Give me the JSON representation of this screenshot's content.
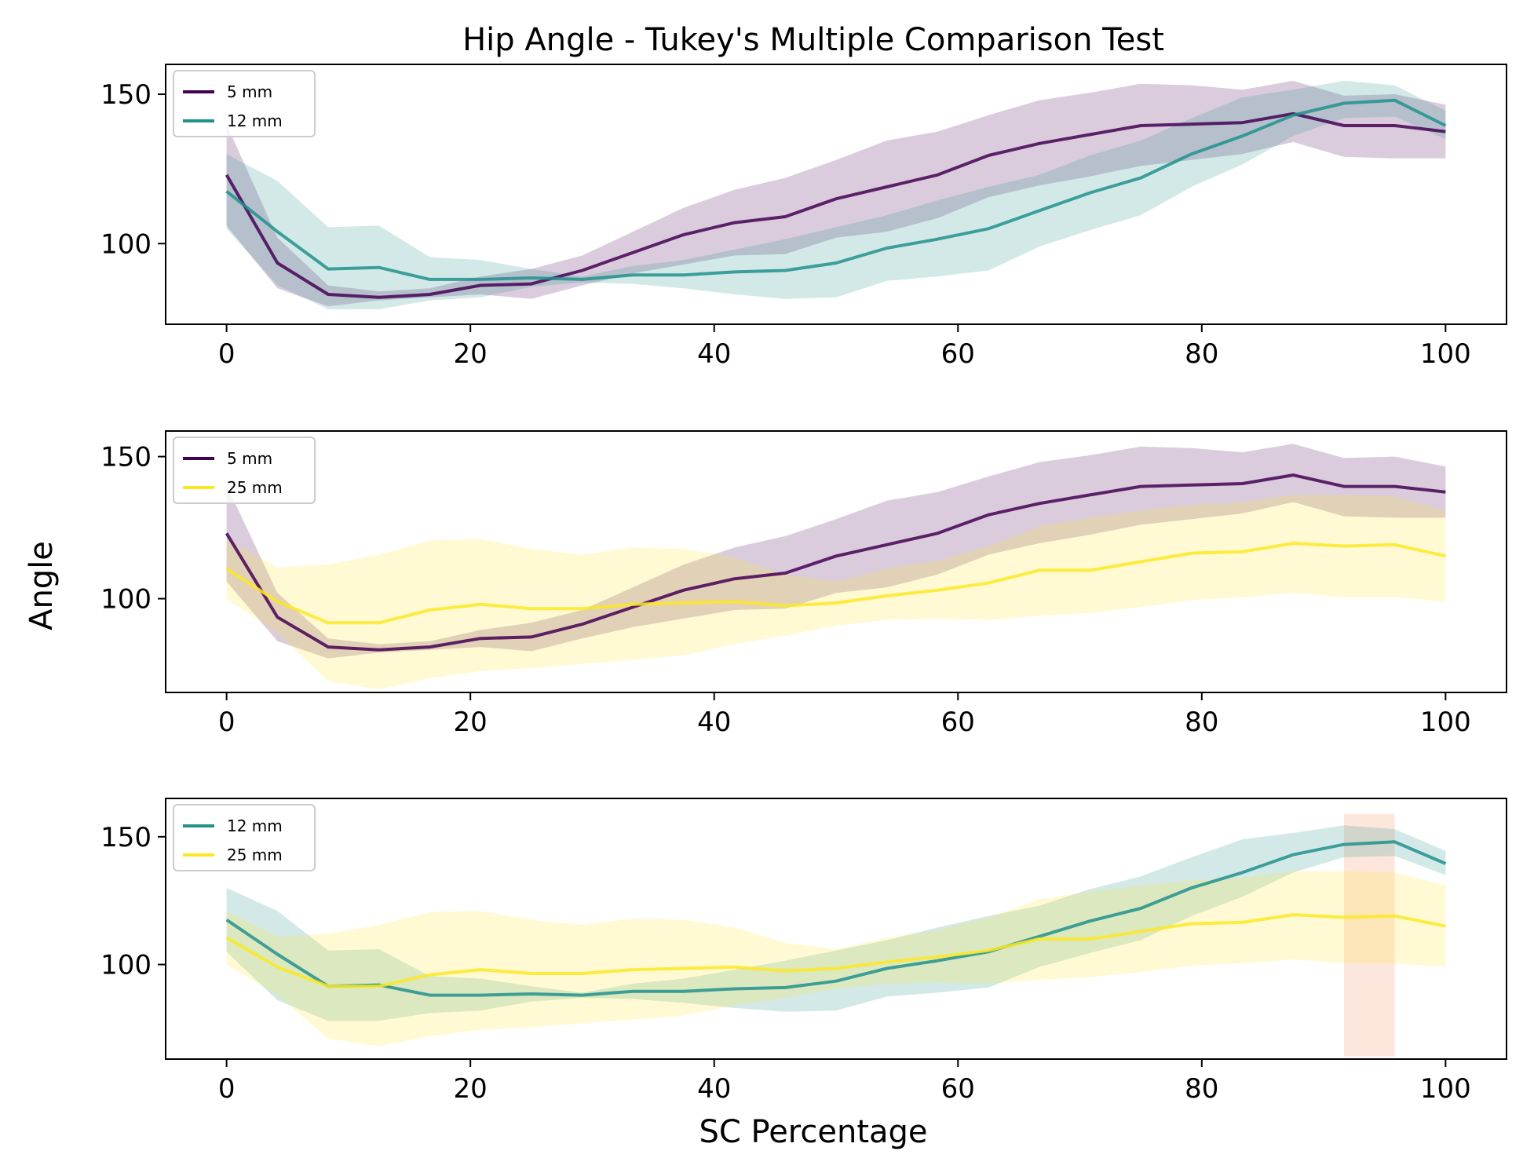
{
  "figure": {
    "title": "Hip Angle - Tukey's Multiple Comparison Test",
    "xlabel": "SC Percentage",
    "ylabel": "Angle"
  },
  "colors": {
    "5 mm": "#440154",
    "12 mm": "#21918c",
    "25 mm": "#fde725",
    "highlight": "#fbd2bf"
  },
  "chart_data": [
    {
      "type": "line",
      "legend_placement": "upper-left",
      "xlim": [
        -5,
        105
      ],
      "ylim": [
        73,
        160
      ],
      "xticks": [
        0,
        20,
        40,
        60,
        80,
        100
      ],
      "yticks": [
        100,
        150
      ],
      "x": [
        0,
        4.17,
        8.33,
        12.5,
        16.67,
        20.83,
        25,
        29.17,
        33.33,
        37.5,
        41.67,
        45.83,
        50,
        54.17,
        58.33,
        62.5,
        66.67,
        70.83,
        75,
        79.17,
        83.33,
        87.5,
        91.67,
        95.83,
        100
      ],
      "series": [
        {
          "name": "5 mm",
          "values": [
            123,
            93.5,
            83,
            82,
            83,
            86,
            86.5,
            91,
            97,
            103,
            107,
            109,
            115,
            119,
            123,
            129.5,
            133.5,
            136.5,
            139.5,
            140,
            140.5,
            143.5,
            139.5,
            139.5,
            137.5
          ],
          "lower": [
            106,
            85,
            79,
            81,
            82,
            83,
            81.5,
            86,
            90,
            93,
            96,
            96.5,
            102,
            104,
            108.5,
            115.5,
            119.5,
            122.5,
            126,
            128,
            130,
            134,
            129,
            128.5,
            128.5
          ],
          "upper": [
            140,
            102,
            86,
            84,
            85,
            89,
            91.5,
            96,
            104,
            112,
            118,
            122,
            128,
            134.5,
            137.5,
            143,
            148,
            150.5,
            153.5,
            153,
            151.5,
            154.5,
            149.5,
            150,
            146.5
          ]
        },
        {
          "name": "12 mm",
          "values": [
            117.5,
            104,
            91.5,
            92,
            88,
            88,
            88.5,
            88,
            89.5,
            89.5,
            90.5,
            91,
            93.5,
            98.5,
            101.5,
            105,
            111,
            117,
            122,
            130,
            136,
            143,
            147,
            148,
            139.5
          ],
          "lower": [
            105,
            86,
            78,
            78,
            81,
            82,
            85.5,
            87,
            86.5,
            85,
            83,
            81.5,
            82,
            87.5,
            89,
            91,
            99,
            104.5,
            109.5,
            119,
            126.5,
            136,
            142,
            142.5,
            135
          ],
          "upper": [
            130,
            121,
            105.5,
            106,
            95.5,
            94.5,
            91.5,
            89,
            92.5,
            94.5,
            98,
            101.5,
            105.5,
            109.5,
            114.5,
            119,
            123,
            129.5,
            134.5,
            142,
            149,
            151.5,
            154.5,
            153,
            144.5
          ]
        }
      ]
    },
    {
      "type": "line",
      "legend_placement": "upper-left",
      "xlim": [
        -5,
        105
      ],
      "ylim": [
        67,
        159
      ],
      "xticks": [
        0,
        20,
        40,
        60,
        80,
        100
      ],
      "yticks": [
        100,
        150
      ],
      "x": [
        0,
        4.17,
        8.33,
        12.5,
        16.67,
        20.83,
        25,
        29.17,
        33.33,
        37.5,
        41.67,
        45.83,
        50,
        54.17,
        58.33,
        62.5,
        66.67,
        70.83,
        75,
        79.17,
        83.33,
        87.5,
        91.67,
        95.83,
        100
      ],
      "series": [
        {
          "name": "5 mm",
          "values": [
            123,
            93.5,
            83,
            82,
            83,
            86,
            86.5,
            91,
            97,
            103,
            107,
            109,
            115,
            119,
            123,
            129.5,
            133.5,
            136.5,
            139.5,
            140,
            140.5,
            143.5,
            139.5,
            139.5,
            137.5
          ],
          "lower": [
            106,
            85,
            79,
            81,
            82,
            83,
            81.5,
            86,
            90,
            93,
            96,
            96.5,
            102,
            104,
            108.5,
            115.5,
            119.5,
            122.5,
            126,
            128,
            130,
            134,
            129,
            128.5,
            128.5
          ],
          "upper": [
            140,
            102,
            86,
            84,
            85,
            89,
            91.5,
            96,
            104,
            112,
            118,
            122,
            128,
            134.5,
            137.5,
            143,
            148,
            150.5,
            153.5,
            153,
            151.5,
            154.5,
            149.5,
            150,
            146.5
          ]
        },
        {
          "name": "25 mm",
          "values": [
            110.5,
            99,
            91.5,
            91.5,
            96,
            98,
            96.5,
            96.5,
            98,
            98.5,
            99,
            97.5,
            98.5,
            101,
            103,
            105.5,
            110,
            110,
            113,
            116,
            116.5,
            119.5,
            118.5,
            119,
            115
          ],
          "lower": [
            100,
            88,
            71,
            68,
            72,
            74.5,
            75.5,
            77,
            78.5,
            80,
            84,
            87,
            90.5,
            92.5,
            93,
            92.5,
            94,
            95,
            97,
            99.5,
            100.5,
            102,
            100.5,
            100.5,
            99
          ],
          "upper": [
            121,
            111,
            112,
            115.5,
            120.5,
            121,
            117.5,
            115.5,
            118,
            117.5,
            114.5,
            108.5,
            106,
            110.5,
            113.5,
            118.5,
            125.5,
            128.5,
            131,
            133,
            134,
            136.5,
            136.5,
            136,
            131
          ]
        }
      ]
    },
    {
      "type": "line",
      "legend_placement": "upper-left",
      "xlim": [
        -5,
        105
      ],
      "ylim": [
        63,
        165
      ],
      "xticks": [
        0,
        20,
        40,
        60,
        80,
        100
      ],
      "yticks": [
        100,
        150
      ],
      "highlight_x_range": [
        91.67,
        95.83
      ],
      "highlight_y_range": [
        64,
        159
      ],
      "x": [
        0,
        4.17,
        8.33,
        12.5,
        16.67,
        20.83,
        25,
        29.17,
        33.33,
        37.5,
        41.67,
        45.83,
        50,
        54.17,
        58.33,
        62.5,
        66.67,
        70.83,
        75,
        79.17,
        83.33,
        87.5,
        91.67,
        95.83,
        100
      ],
      "series": [
        {
          "name": "12 mm",
          "values": [
            117.5,
            104,
            91.5,
            92,
            88,
            88,
            88.5,
            88,
            89.5,
            89.5,
            90.5,
            91,
            93.5,
            98.5,
            101.5,
            105,
            111,
            117,
            122,
            130,
            136,
            143,
            147,
            148,
            139.5
          ],
          "lower": [
            105,
            86,
            78,
            78,
            81,
            82,
            85.5,
            87,
            86.5,
            85,
            83,
            81.5,
            82,
            87.5,
            89,
            91,
            99,
            104.5,
            109.5,
            119,
            126.5,
            136,
            142,
            142.5,
            135
          ],
          "upper": [
            130,
            121,
            105.5,
            106,
            95.5,
            94.5,
            91.5,
            89,
            92.5,
            94.5,
            98,
            101.5,
            105.5,
            109.5,
            114.5,
            119,
            123,
            129.5,
            134.5,
            142,
            149,
            151.5,
            154.5,
            153,
            144.5
          ]
        },
        {
          "name": "25 mm",
          "values": [
            110.5,
            99,
            91.5,
            91.5,
            96,
            98,
            96.5,
            96.5,
            98,
            98.5,
            99,
            97.5,
            98.5,
            101,
            103,
            105.5,
            110,
            110,
            113,
            116,
            116.5,
            119.5,
            118.5,
            119,
            115
          ],
          "lower": [
            100,
            88,
            71,
            68,
            72,
            74.5,
            75.5,
            77,
            78.5,
            80,
            84,
            87,
            90.5,
            92.5,
            93,
            92.5,
            94,
            95,
            97,
            99.5,
            100.5,
            102,
            100.5,
            100.5,
            99
          ],
          "upper": [
            121,
            111,
            112,
            115.5,
            120.5,
            121,
            117.5,
            115.5,
            118,
            117.5,
            114.5,
            108.5,
            106,
            110.5,
            113.5,
            118.5,
            125.5,
            128.5,
            131,
            133,
            134,
            136.5,
            136.5,
            136,
            131
          ]
        }
      ]
    }
  ]
}
